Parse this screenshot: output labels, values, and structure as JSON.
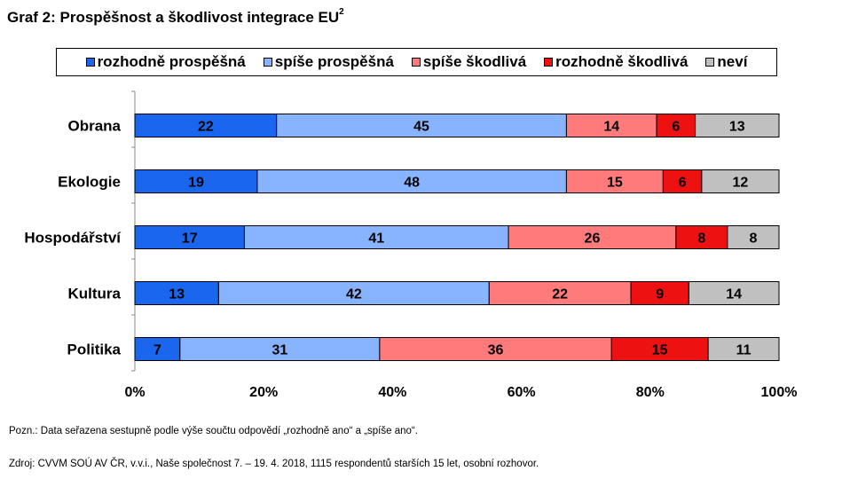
{
  "title": "Graf 2: Prospěšnost a škodlivost integrace EU",
  "title_sup": "2",
  "note": "Pozn.: Data seřazena sestupně podle výše součtu odpovědí „rozhodně ano“ a „spíše ano“.",
  "source": "Zdroj: CVVM SOÚ AV ČR, v.v.i., Naše společnost 7. – 19. 4. 2018, 1115 respondentů starších 15 let, osobní rozhovor.",
  "chart_data": {
    "type": "bar",
    "orientation": "horizontal",
    "stacked": true,
    "normalized": true,
    "categories": [
      "Obrana",
      "Ekologie",
      "Hospodářství",
      "Kultura",
      "Politika"
    ],
    "series": [
      {
        "name": "rozhodně prospěšná",
        "color": "#1a66ee",
        "values": [
          22,
          19,
          17,
          13,
          7
        ]
      },
      {
        "name": "spíše prospěšná",
        "color": "#88b4ff",
        "values": [
          45,
          48,
          41,
          42,
          31
        ]
      },
      {
        "name": "spíše škodlivá",
        "color": "#ff7b7b",
        "values": [
          14,
          15,
          26,
          22,
          36
        ]
      },
      {
        "name": "rozhodně škodlivá",
        "color": "#ee1111",
        "values": [
          6,
          6,
          8,
          9,
          15
        ]
      },
      {
        "name": "neví",
        "color": "#c0c0c0",
        "values": [
          13,
          12,
          8,
          14,
          11
        ]
      }
    ],
    "x_ticks": [
      "0%",
      "20%",
      "40%",
      "60%",
      "80%",
      "100%"
    ],
    "xlim": [
      0,
      100
    ],
    "legend_position": "top"
  }
}
